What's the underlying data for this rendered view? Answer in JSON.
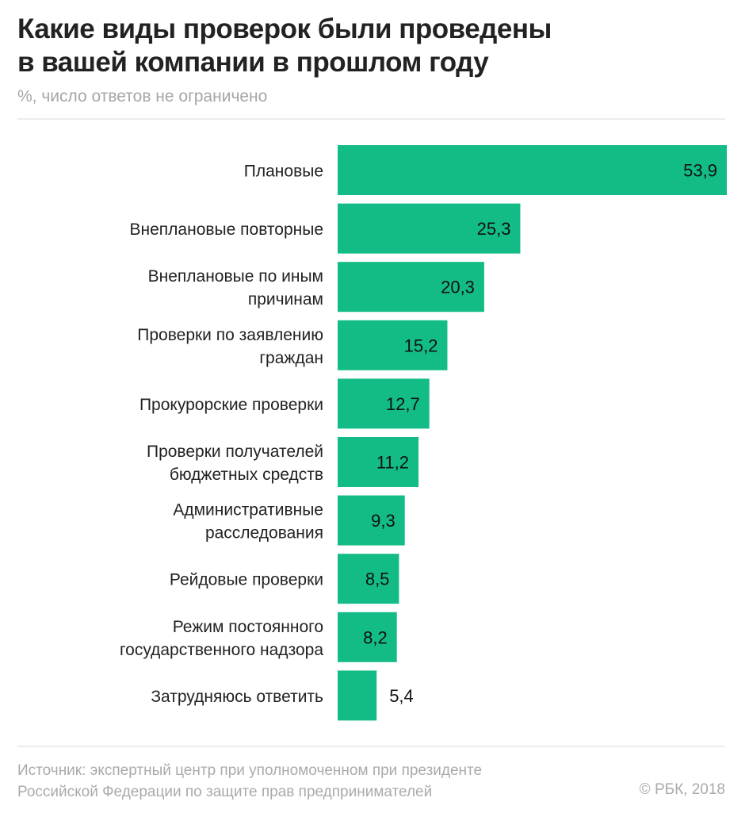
{
  "chart_data": {
    "type": "bar",
    "orientation": "horizontal",
    "title": "Какие виды проверок были проведены в вашей компании в прошлом году",
    "title_lines": [
      "Какие виды проверок были проведены",
      "в вашей компании в прошлом году"
    ],
    "subtitle": "%, число ответов не ограничено",
    "categories": [
      [
        "Плановые"
      ],
      [
        "Внеплановые повторные"
      ],
      [
        "Внеплановые по иным",
        "причинам"
      ],
      [
        "Проверки по заявлению",
        "граждан"
      ],
      [
        "Прокурорские проверки"
      ],
      [
        "Проверки получателей",
        "бюджетных средств"
      ],
      [
        "Административные",
        "расследования"
      ],
      [
        "Рейдовые проверки"
      ],
      [
        "Режим постоянного",
        "государственного надзора"
      ],
      [
        "Затрудняюсь ответить"
      ]
    ],
    "values": [
      53.9,
      25.3,
      20.3,
      15.2,
      12.7,
      11.2,
      9.3,
      8.5,
      8.2,
      5.4
    ],
    "value_labels": [
      "53,9",
      "25,3",
      "20,3",
      "15,2",
      "12,7",
      "11,2",
      "9,3",
      "8,5",
      "8,2",
      "5,4"
    ],
    "xlim": [
      0,
      53.9
    ],
    "grid": false,
    "bar_color": "#13bb87"
  },
  "footer": {
    "source_lines": [
      "Источник: экспертный центр при уполномоченном при президенте",
      "Российской Федерации по защите прав предпринимателей"
    ],
    "copyright": "© РБК, 2018"
  }
}
